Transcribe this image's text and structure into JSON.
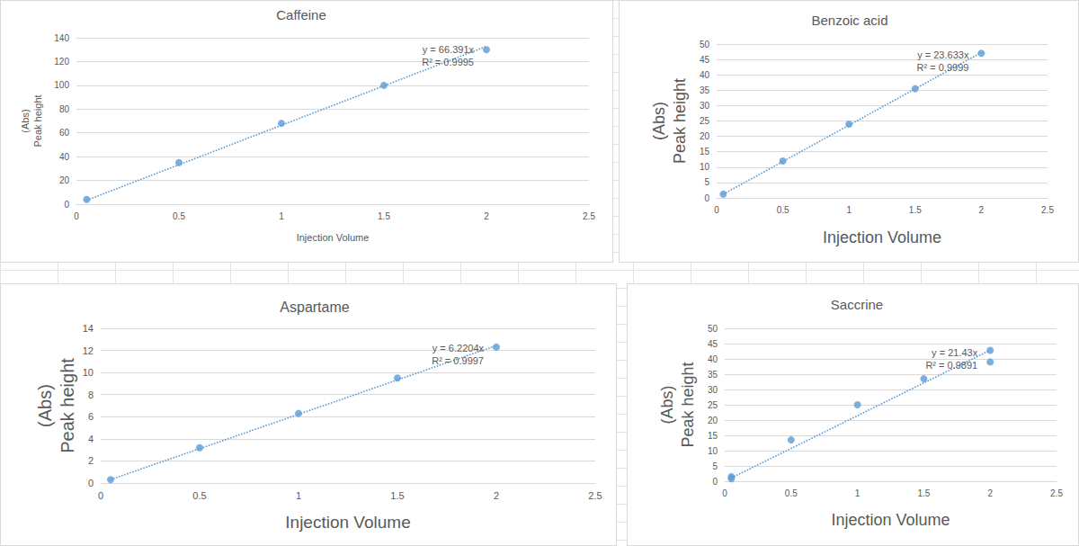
{
  "chart_data": [
    {
      "type": "scatter",
      "title": "Caffeine",
      "x_label": "Injection Volume",
      "y_label": "(Abs)\nPeak height",
      "x": [
        0.05,
        0.5,
        1,
        1.5,
        2
      ],
      "values": [
        4,
        35,
        68,
        100,
        130
      ],
      "color": "#5b9bd5",
      "marker": "circle",
      "xlim": [
        0,
        2.5
      ],
      "xticks": [
        0,
        0.5,
        1,
        1.5,
        2,
        2.5
      ],
      "ylim": [
        0,
        140
      ],
      "yticks": [
        0,
        20,
        40,
        60,
        80,
        100,
        120,
        140
      ],
      "grid": true,
      "trendline": {
        "slope": 66.391,
        "equation": "y = 66.391x",
        "r_squared": "R² = 0.9995",
        "line_style": "dotted"
      }
    },
    {
      "type": "scatter",
      "title": "Benzoic acid",
      "x_label": "Injection Volume",
      "y_label": "(Abs)\nPeak height",
      "x": [
        0.05,
        0.5,
        1,
        1.5,
        2
      ],
      "values": [
        1.2,
        12,
        24,
        35.5,
        47
      ],
      "color": "#5b9bd5",
      "marker": "circle",
      "xlim": [
        0,
        2.5
      ],
      "xticks": [
        0,
        0.5,
        1,
        1.5,
        2,
        2.5
      ],
      "ylim": [
        0,
        50
      ],
      "yticks": [
        0,
        5,
        10,
        15,
        20,
        25,
        30,
        35,
        40,
        45,
        50
      ],
      "grid": true,
      "trendline": {
        "slope": 23.633,
        "equation": "y = 23.633x",
        "r_squared": "R² = 0.9999",
        "line_style": "dotted"
      }
    },
    {
      "type": "scatter",
      "title": "Aspartame",
      "x_label": "Injection Volume",
      "y_label": "(Abs)\nPeak height",
      "x": [
        0.05,
        0.5,
        1,
        1.5,
        2
      ],
      "values": [
        0.3,
        3.2,
        6.3,
        9.5,
        12.3
      ],
      "color": "#5b9bd5",
      "marker": "circle",
      "xlim": [
        0,
        2.5
      ],
      "xticks": [
        0,
        0.5,
        1,
        1.5,
        2,
        2.5
      ],
      "ylim": [
        0,
        14
      ],
      "yticks": [
        0,
        2,
        4,
        6,
        8,
        10,
        12,
        14
      ],
      "grid": true,
      "trendline": {
        "slope": 6.2204,
        "equation": "y = 6.2204x",
        "r_squared": "R² = 0.9997",
        "line_style": "dotted"
      }
    },
    {
      "type": "scatter",
      "title": "Saccrine",
      "x_label": "Injection Volume",
      "y_label": "(Abs)\nPeak height",
      "x": [
        0.05,
        0.05,
        0.5,
        1,
        1.5,
        2,
        2
      ],
      "values": [
        1.5,
        0.8,
        13.5,
        25,
        33.5,
        42.8,
        39
      ],
      "color": "#5b9bd5",
      "marker": "circle",
      "xlim": [
        0,
        2.5
      ],
      "xticks": [
        0,
        0.5,
        1,
        1.5,
        2,
        2.5
      ],
      "ylim": [
        0,
        50
      ],
      "yticks": [
        0,
        5,
        10,
        15,
        20,
        25,
        30,
        35,
        40,
        45,
        50
      ],
      "grid": true,
      "trendline": {
        "slope": 21.43,
        "equation": "y = 21.43x",
        "r_squared": "R² = 0.9891",
        "line_style": "dotted"
      }
    }
  ]
}
